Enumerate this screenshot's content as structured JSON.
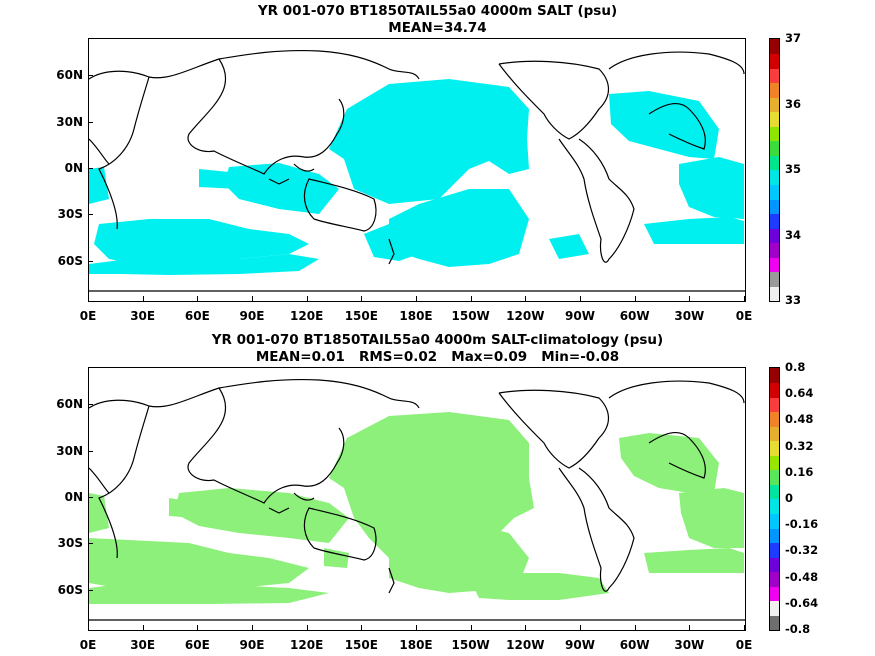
{
  "panels": [
    {
      "title_line1": "YR 001-070 BT1850TAIL55a0 4000m SALT (psu)",
      "title_line2": "MEAN=34.74",
      "colorbar_labels": [
        "37",
        "36",
        "35",
        "34",
        "33"
      ],
      "colorbar_colors": [
        "#f0f0f0",
        "#9a9a9a",
        "#f000f0",
        "#a000c8",
        "#6e00dc",
        "#1e3cff",
        "#0096ff",
        "#00c8ff",
        "#00e6e6",
        "#00e68c",
        "#3cdc3c",
        "#8ce600",
        "#e6dc32",
        "#e6af2d",
        "#f08228",
        "#fa3c3c",
        "#d20000",
        "#960000"
      ],
      "field_color": "#00f0f0"
    },
    {
      "title_line1": "YR 001-070 BT1850TAIL55a0 4000m SALT-climatology (psu)",
      "title_line2": "MEAN=0.01   RMS=0.02   Max=0.09   Min=-0.08",
      "colorbar_labels": [
        "0.8",
        "0.64",
        "0.48",
        "0.32",
        "0.16",
        "0",
        "-0.16",
        "-0.32",
        "-0.48",
        "-0.64",
        "-0.8"
      ],
      "colorbar_colors": [
        "#6e6e6e",
        "#f0f0f0",
        "#f000f0",
        "#a000c8",
        "#6e00dc",
        "#1e3cff",
        "#0096ff",
        "#00c8ff",
        "#00e6e6",
        "#00e6a0",
        "#5ae65a",
        "#96e600",
        "#e6dc32",
        "#e6af2d",
        "#f08228",
        "#fa3c3c",
        "#d20000",
        "#960000"
      ],
      "field_color": "#8cf07a"
    }
  ],
  "lat_labels": [
    "60N",
    "30N",
    "0N",
    "30S",
    "60S"
  ],
  "lon_labels": [
    "0E",
    "30E",
    "60E",
    "90E",
    "120E",
    "150E",
    "180E",
    "150W",
    "120W",
    "90W",
    "60W",
    "30W",
    "0E"
  ]
}
